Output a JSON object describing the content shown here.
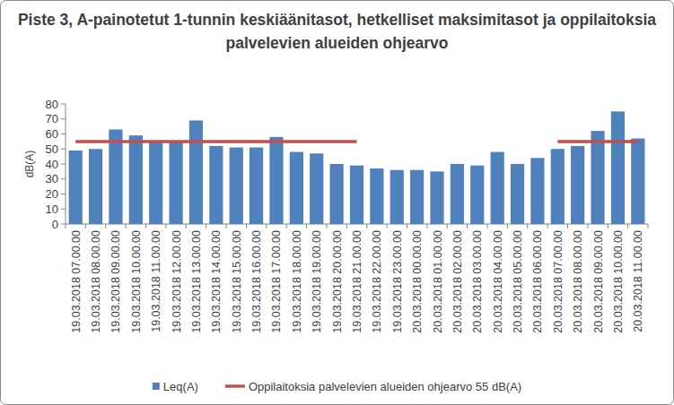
{
  "chart_data": {
    "type": "bar",
    "title": "Piste 3, A-painotetut 1-tunnin keskiäänitasot, hetkelliset maksimitasot ja oppilaitoksia palvelevien alueiden ohjearvo",
    "y_label": "dB(A)",
    "categories": [
      "19.03.2018 07.00.00",
      "19.03.2018 08.00.00",
      "19.03.2018 09.00.00",
      "19.03.2018 10.00.00",
      "19.03.2018 11.00.00",
      "19.03.2018 12.00.00",
      "19.03.2018 13.00.00",
      "19.03.2018 14.00.00",
      "19.03.2018 15.00.00",
      "19.03.2018 16.00.00",
      "19.03.2018 17.00.00",
      "19.03.2018 18.00.00",
      "19.03.2018 19.00.00",
      "19.03.2018 20.00.00",
      "19.03.2018 21.00.00",
      "19.03.2018 22.00.00",
      "19.03.2018 23.00.00",
      "20.03.2018 00.00.00",
      "20.03.2018 01.00.00",
      "20.03.2018 02.00.00",
      "20.03.2018 03.00.00",
      "20.03.2018 04.00.00",
      "20.03.2018 05.00.00",
      "20.03.2018 06.00.00",
      "20.03.2018 07.00.00",
      "20.03.2018 08.00.00",
      "20.03.2018 09.00.00",
      "20.03.2018 10.00.00",
      "20.03.2018 11.00.00"
    ],
    "series": [
      {
        "name": "Leq(A)",
        "type": "bar",
        "color": "#4f81bd",
        "values": [
          49,
          50,
          63,
          59,
          55,
          55,
          69,
          52,
          51,
          51,
          58,
          48,
          47,
          40,
          39,
          37,
          36,
          36,
          35,
          40,
          39,
          48,
          40,
          44,
          50,
          52,
          62,
          75,
          57
        ]
      },
      {
        "name": "Oppilaitoksia palvelevien alueiden ohjearvo 55 dB(A)",
        "type": "line",
        "color": "#c0504d",
        "values": [
          55,
          55,
          55,
          55,
          55,
          55,
          55,
          55,
          55,
          55,
          55,
          55,
          55,
          55,
          55,
          null,
          null,
          null,
          null,
          null,
          null,
          null,
          null,
          null,
          55,
          55,
          55,
          55,
          55
        ]
      }
    ],
    "ylim": [
      0,
      80
    ],
    "yticks": [
      0,
      10,
      20,
      30,
      40,
      50,
      60,
      70,
      80
    ],
    "grid": false,
    "legend": "bottom"
  }
}
